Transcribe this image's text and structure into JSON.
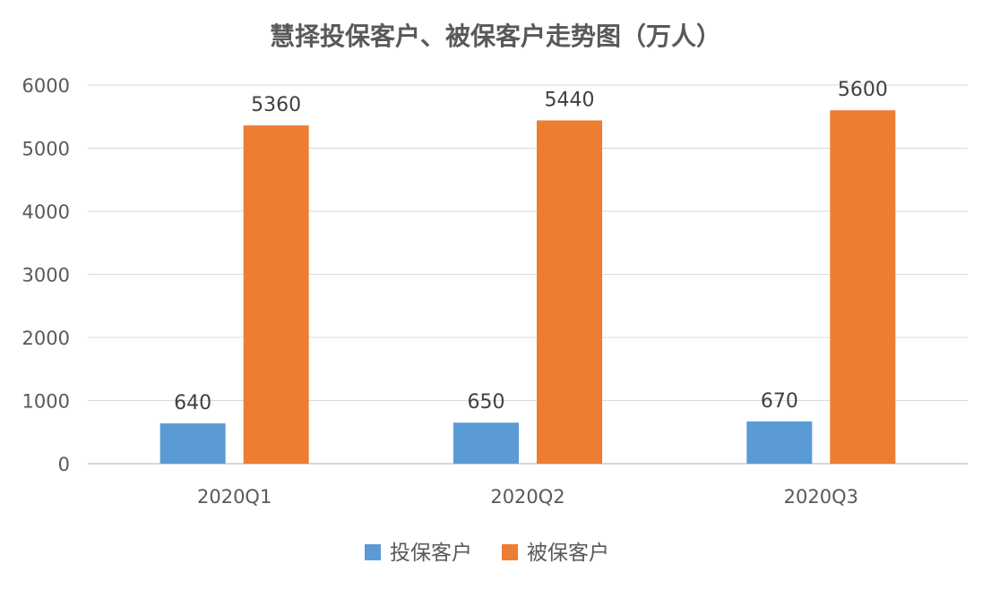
{
  "chart_data": {
    "type": "bar",
    "title": "慧择投保客户、被保客户走势图（万人）",
    "categories": [
      "2020Q1",
      "2020Q2",
      "2020Q3"
    ],
    "series": [
      {
        "name": "投保客户",
        "values": [
          640,
          650,
          670
        ],
        "color": "#5b9bd5"
      },
      {
        "name": "被保客户",
        "values": [
          5360,
          5440,
          5600
        ],
        "color": "#ed7d31"
      }
    ],
    "ylim": [
      0,
      6000
    ],
    "yticks": [
      0,
      1000,
      2000,
      3000,
      4000,
      5000,
      6000
    ],
    "grid": true,
    "legend_position": "bottom",
    "data_labels": true
  }
}
